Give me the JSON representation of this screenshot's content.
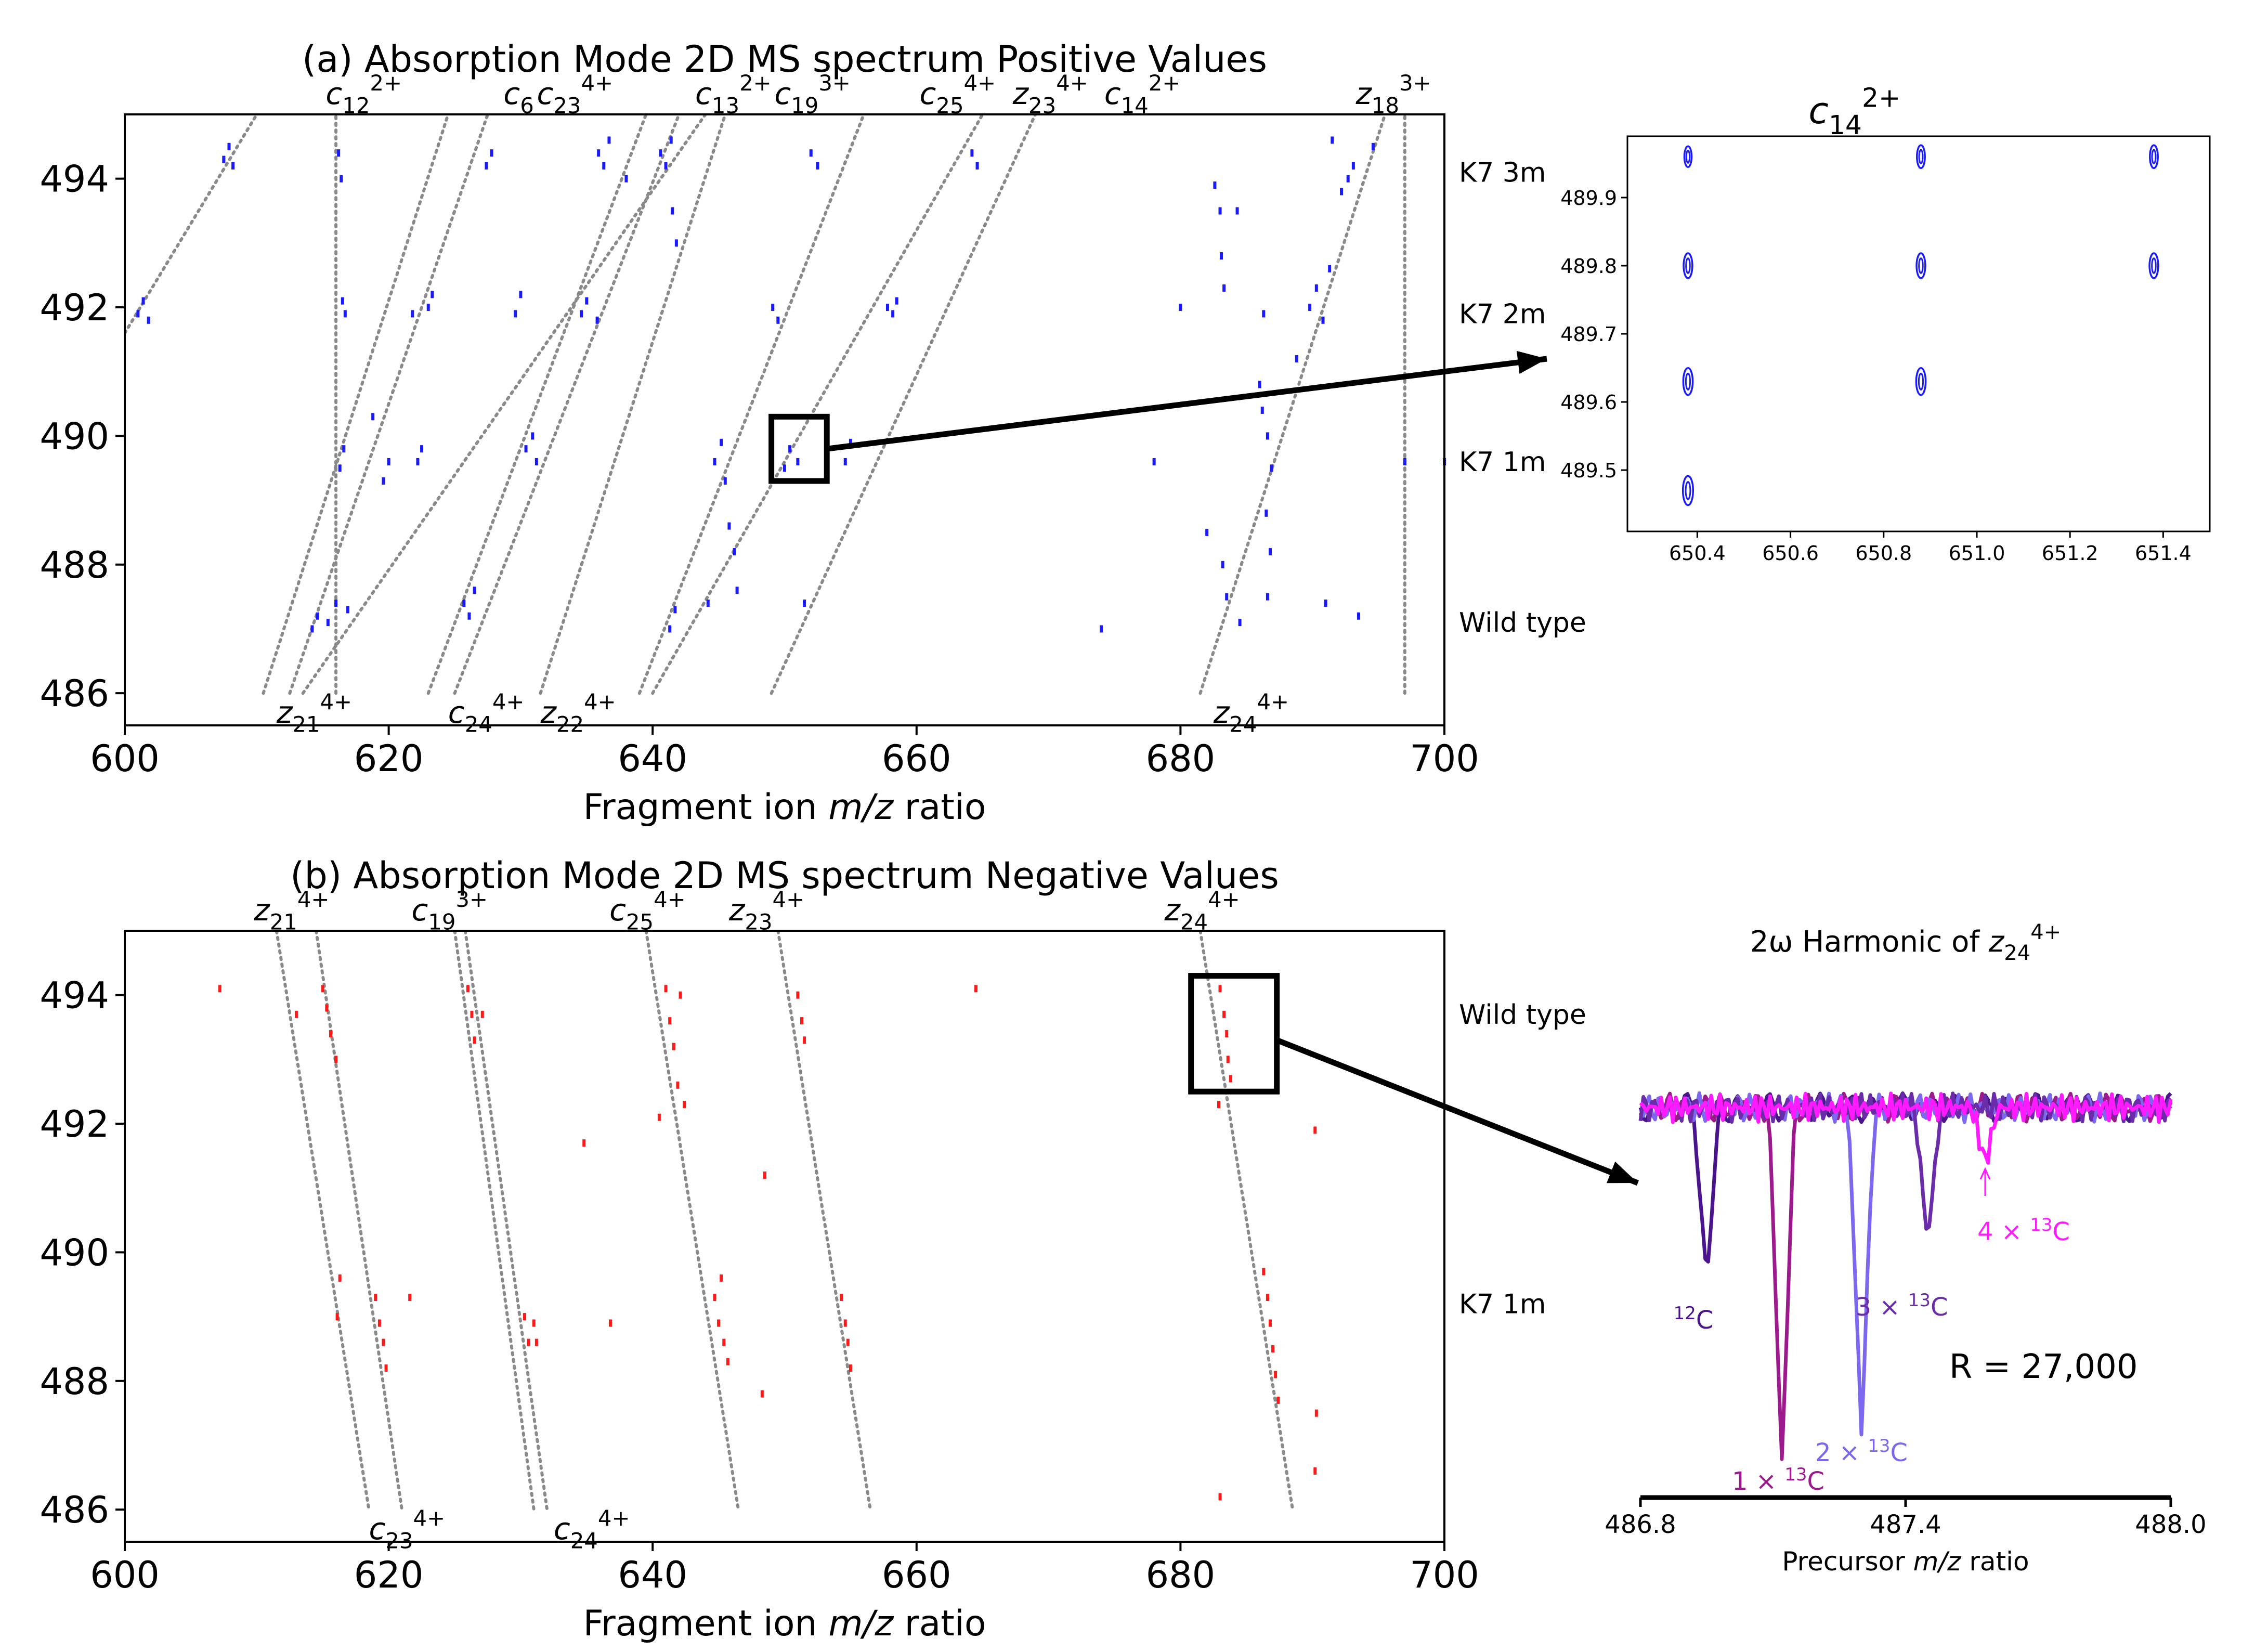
{
  "chart_data": [
    {
      "id": "panel_a",
      "type": "scatter",
      "title": "(a) Absorption Mode 2D MS spectrum Positive Values",
      "xlabel": "Fragment ion m/z ratio",
      "ylabel": "",
      "xlim": [
        600,
        700
      ],
      "ylim": [
        485.5,
        495.0
      ],
      "xticks": [
        600,
        620,
        640,
        660,
        680,
        700
      ],
      "yticks": [
        486,
        488,
        490,
        492,
        494
      ],
      "grid": false,
      "point_color": "#1a1aff",
      "row_labels": [
        {
          "label": "K7 3m",
          "y": 494.1
        },
        {
          "label": "K7 2m",
          "y": 491.9
        },
        {
          "label": "K7 1m",
          "y": 489.6
        },
        {
          "label": "Wild type",
          "y": 487.1
        }
      ],
      "top_labels": [
        {
          "base": "c",
          "sub": "12",
          "sup": "2+",
          "x": 621
        },
        {
          "base": "c",
          "sub": "6",
          "sup": "",
          "x": 631
        },
        {
          "base": "c",
          "sub": "23",
          "sup": "4+",
          "x": 637
        },
        {
          "base": "c",
          "sub": "13",
          "sup": "2+",
          "x": 649
        },
        {
          "base": "c",
          "sub": "19",
          "sup": "3+",
          "x": 655
        },
        {
          "base": "c",
          "sub": "25",
          "sup": "4+",
          "x": 666
        },
        {
          "base": "z",
          "sub": "23",
          "sup": "4+",
          "x": 673
        },
        {
          "base": "c",
          "sub": "14",
          "sup": "2+",
          "x": 680
        },
        {
          "base": "z",
          "sub": "18",
          "sup": "3+",
          "x": 699
        }
      ],
      "bottom_labels": [
        {
          "base": "z",
          "sub": "21",
          "sup": "4+",
          "x": 611.5
        },
        {
          "base": "c",
          "sub": "24",
          "sup": "4+",
          "x": 624.5
        },
        {
          "base": "z",
          "sub": "22",
          "sup": "4+",
          "x": 631.5
        },
        {
          "base": "z",
          "sub": "24",
          "sup": "4+",
          "x": 682.5
        }
      ],
      "diagonals": [
        {
          "x1": 600.0,
          "y1": 491.6,
          "x2": 610.0,
          "y2": 495.0
        },
        {
          "x1": 616.0,
          "y1": 486.0,
          "x2": 616.0,
          "y2": 495.0
        },
        {
          "x1": 610.5,
          "y1": 486.0,
          "x2": 624.5,
          "y2": 495.0
        },
        {
          "x1": 612.5,
          "y1": 486.0,
          "x2": 627.5,
          "y2": 495.0
        },
        {
          "x1": 613.5,
          "y1": 486.0,
          "x2": 644.0,
          "y2": 495.0
        },
        {
          "x1": 623.0,
          "y1": 486.0,
          "x2": 639.5,
          "y2": 495.0
        },
        {
          "x1": 625.0,
          "y1": 486.0,
          "x2": 642.0,
          "y2": 495.0
        },
        {
          "x1": 631.5,
          "y1": 486.0,
          "x2": 645.5,
          "y2": 495.0
        },
        {
          "x1": 639.0,
          "y1": 486.0,
          "x2": 656.0,
          "y2": 495.0
        },
        {
          "x1": 640.0,
          "y1": 486.0,
          "x2": 665.0,
          "y2": 495.0
        },
        {
          "x1": 649.0,
          "y1": 486.0,
          "x2": 669.0,
          "y2": 495.0
        },
        {
          "x1": 681.5,
          "y1": 486.0,
          "x2": 695.5,
          "y2": 495.0
        },
        {
          "x1": 697.0,
          "y1": 486.0,
          "x2": 697.0,
          "y2": 495.0
        }
      ],
      "points": [
        [
          601.0,
          491.9
        ],
        [
          601.4,
          492.1
        ],
        [
          601.8,
          491.8
        ],
        [
          607.5,
          494.3
        ],
        [
          607.9,
          494.5
        ],
        [
          608.2,
          494.2
        ],
        [
          616.2,
          494.4
        ],
        [
          616.4,
          494.0
        ],
        [
          616.5,
          492.1
        ],
        [
          616.7,
          491.9
        ],
        [
          616.3,
          489.5
        ],
        [
          616.6,
          489.8
        ],
        [
          616.0,
          487.4
        ],
        [
          615.4,
          487.1
        ],
        [
          614.6,
          487.2
        ],
        [
          614.2,
          487.0
        ],
        [
          616.9,
          487.3
        ],
        [
          621.8,
          491.9
        ],
        [
          619.6,
          489.3
        ],
        [
          620.0,
          489.6
        ],
        [
          618.8,
          490.3
        ],
        [
          622.2,
          489.6
        ],
        [
          622.5,
          489.8
        ],
        [
          623.0,
          492.0
        ],
        [
          623.3,
          492.2
        ],
        [
          625.7,
          487.4
        ],
        [
          626.1,
          487.2
        ],
        [
          626.5,
          487.6
        ],
        [
          627.4,
          494.2
        ],
        [
          627.8,
          494.4
        ],
        [
          629.6,
          491.9
        ],
        [
          630.0,
          492.2
        ],
        [
          630.4,
          489.8
        ],
        [
          630.9,
          490.0
        ],
        [
          631.2,
          489.6
        ],
        [
          634.6,
          491.9
        ],
        [
          635.0,
          492.1
        ],
        [
          635.8,
          491.8
        ],
        [
          635.9,
          494.4
        ],
        [
          636.3,
          494.2
        ],
        [
          636.7,
          494.6
        ],
        [
          638.0,
          494.0
        ],
        [
          640.6,
          494.4
        ],
        [
          641.0,
          494.2
        ],
        [
          641.4,
          494.6
        ],
        [
          641.5,
          493.5
        ],
        [
          641.8,
          493.0
        ],
        [
          644.2,
          487.4
        ],
        [
          641.3,
          487.0
        ],
        [
          641.7,
          487.3
        ],
        [
          644.7,
          489.6
        ],
        [
          645.2,
          489.9
        ],
        [
          645.5,
          489.3
        ],
        [
          645.8,
          488.6
        ],
        [
          646.2,
          488.2
        ],
        [
          646.4,
          487.6
        ],
        [
          649.1,
          492.0
        ],
        [
          649.5,
          491.8
        ],
        [
          650.0,
          489.5
        ],
        [
          650.4,
          489.8
        ],
        [
          651.0,
          489.6
        ],
        [
          651.5,
          487.4
        ],
        [
          652.0,
          494.4
        ],
        [
          652.5,
          494.2
        ],
        [
          654.6,
          489.6
        ],
        [
          655.0,
          489.9
        ],
        [
          657.8,
          492.0
        ],
        [
          658.2,
          491.9
        ],
        [
          658.5,
          492.1
        ],
        [
          664.2,
          494.4
        ],
        [
          664.6,
          494.2
        ],
        [
          674.0,
          487.0
        ],
        [
          678.0,
          489.6
        ],
        [
          680.0,
          492.0
        ],
        [
          682.6,
          493.9
        ],
        [
          683.0,
          493.5
        ],
        [
          683.1,
          492.8
        ],
        [
          683.3,
          492.3
        ],
        [
          683.2,
          488.0
        ],
        [
          683.5,
          487.5
        ],
        [
          684.3,
          493.5
        ],
        [
          686.0,
          490.8
        ],
        [
          686.2,
          490.4
        ],
        [
          686.3,
          491.9
        ],
        [
          686.6,
          490.0
        ],
        [
          686.9,
          489.5
        ],
        [
          686.5,
          488.8
        ],
        [
          686.8,
          488.2
        ],
        [
          688.8,
          491.2
        ],
        [
          689.8,
          492.0
        ],
        [
          690.3,
          492.3
        ],
        [
          690.8,
          491.8
        ],
        [
          691.3,
          492.6
        ],
        [
          691.5,
          494.6
        ],
        [
          692.2,
          493.8
        ],
        [
          692.7,
          494.0
        ],
        [
          693.1,
          494.2
        ],
        [
          694.6,
          494.5
        ],
        [
          697.0,
          489.6
        ],
        [
          700.0,
          489.6
        ],
        [
          682.0,
          488.5
        ],
        [
          691.0,
          487.4
        ],
        [
          693.5,
          487.2
        ],
        [
          686.6,
          487.5
        ],
        [
          684.5,
          487.1
        ]
      ]
    },
    {
      "id": "panel_b",
      "type": "scatter",
      "title": "(b) Absorption Mode 2D MS spectrum Negative Values",
      "xlabel": "Fragment ion m/z ratio",
      "ylabel": "",
      "xlim": [
        600,
        700
      ],
      "ylim": [
        485.5,
        495.0
      ],
      "xticks": [
        600,
        620,
        640,
        660,
        680,
        700
      ],
      "yticks": [
        486,
        488,
        490,
        492,
        494
      ],
      "grid": false,
      "point_color": "#ff1a1a",
      "row_labels": [
        {
          "label": "Wild type",
          "y": 493.7
        },
        {
          "label": "K7 1m",
          "y": 489.2
        }
      ],
      "top_labels": [
        {
          "base": "z",
          "sub": "21",
          "sup": "4+",
          "x": 615.5
        },
        {
          "base": "c",
          "sub": "19",
          "sup": "3+",
          "x": 627.5
        },
        {
          "base": "c",
          "sub": "25",
          "sup": "4+",
          "x": 642.5
        },
        {
          "base": "z",
          "sub": "23",
          "sup": "4+",
          "x": 651.5
        },
        {
          "base": "z",
          "sub": "24",
          "sup": "4+",
          "x": 684.5
        }
      ],
      "bottom_labels": [
        {
          "base": "c",
          "sub": "23",
          "sup": "4+",
          "x": 618.5
        },
        {
          "base": "c",
          "sub": "24",
          "sup": "4+",
          "x": 632.5
        }
      ],
      "diagonals": [
        {
          "x1": 611.5,
          "y1": 495.0,
          "x2": 618.5,
          "y2": 486.0
        },
        {
          "x1": 614.5,
          "y1": 495.0,
          "x2": 621.0,
          "y2": 486.0
        },
        {
          "x1": 625.0,
          "y1": 495.0,
          "x2": 631.0,
          "y2": 486.0
        },
        {
          "x1": 625.8,
          "y1": 495.0,
          "x2": 632.0,
          "y2": 486.0
        },
        {
          "x1": 639.5,
          "y1": 495.0,
          "x2": 646.5,
          "y2": 486.0
        },
        {
          "x1": 649.5,
          "y1": 495.0,
          "x2": 656.5,
          "y2": 486.0
        },
        {
          "x1": 681.5,
          "y1": 495.0,
          "x2": 688.5,
          "y2": 486.0
        }
      ],
      "points": [
        [
          607.2,
          494.1
        ],
        [
          613.0,
          493.7
        ],
        [
          615.0,
          494.1
        ],
        [
          615.3,
          493.8
        ],
        [
          615.6,
          493.4
        ],
        [
          616.0,
          493.0
        ],
        [
          616.3,
          489.6
        ],
        [
          616.1,
          489.0
        ],
        [
          619.0,
          489.3
        ],
        [
          619.3,
          488.9
        ],
        [
          619.6,
          488.6
        ],
        [
          619.8,
          488.2
        ],
        [
          621.6,
          489.3
        ],
        [
          626.0,
          494.1
        ],
        [
          626.3,
          493.7
        ],
        [
          626.5,
          493.3
        ],
        [
          627.1,
          493.7
        ],
        [
          630.3,
          489.0
        ],
        [
          630.6,
          488.6
        ],
        [
          631.0,
          488.9
        ],
        [
          631.2,
          488.6
        ],
        [
          634.8,
          491.7
        ],
        [
          636.8,
          488.9
        ],
        [
          640.5,
          492.1
        ],
        [
          641.0,
          494.1
        ],
        [
          641.3,
          493.6
        ],
        [
          641.6,
          493.2
        ],
        [
          641.9,
          492.6
        ],
        [
          642.1,
          494.0
        ],
        [
          642.4,
          492.3
        ],
        [
          644.7,
          489.3
        ],
        [
          645.0,
          488.9
        ],
        [
          645.2,
          489.6
        ],
        [
          645.4,
          488.6
        ],
        [
          645.7,
          488.3
        ],
        [
          648.5,
          491.2
        ],
        [
          648.3,
          487.8
        ],
        [
          651.0,
          494.0
        ],
        [
          651.3,
          493.6
        ],
        [
          651.5,
          493.3
        ],
        [
          654.3,
          489.3
        ],
        [
          654.6,
          488.9
        ],
        [
          654.8,
          488.6
        ],
        [
          655.0,
          488.2
        ],
        [
          664.5,
          494.1
        ],
        [
          683.0,
          494.1
        ],
        [
          683.3,
          493.7
        ],
        [
          683.5,
          493.4
        ],
        [
          683.6,
          493.0
        ],
        [
          683.8,
          492.7
        ],
        [
          682.9,
          492.3
        ],
        [
          686.3,
          489.7
        ],
        [
          686.6,
          489.3
        ],
        [
          686.8,
          488.9
        ],
        [
          687.0,
          488.5
        ],
        [
          687.2,
          488.1
        ],
        [
          687.4,
          487.7
        ],
        [
          690.2,
          491.9
        ],
        [
          690.3,
          487.5
        ],
        [
          690.2,
          486.6
        ],
        [
          683.0,
          486.2
        ]
      ],
      "highlight_box": {
        "x1": 680.8,
        "x2": 687.3,
        "y1": 492.5,
        "y2": 494.3
      }
    },
    {
      "id": "inset_c14",
      "type": "scatter",
      "title_base": "c",
      "title_sub": "14",
      "title_sup": "2+",
      "xlabel": "",
      "ylabel": "",
      "xlim": [
        650.25,
        651.5
      ],
      "ylim": [
        489.41,
        489.99
      ],
      "xticks": [
        650.4,
        650.6,
        650.8,
        651.0,
        651.2,
        651.4
      ],
      "yticks": [
        489.5,
        489.6,
        489.7,
        489.8,
        489.9
      ],
      "grid": false,
      "contours": [
        {
          "x": 650.38,
          "y": 489.96,
          "size": 1
        },
        {
          "x": 650.88,
          "y": 489.96,
          "size": 1.1
        },
        {
          "x": 651.38,
          "y": 489.96,
          "size": 1.1
        },
        {
          "x": 650.38,
          "y": 489.8,
          "size": 1.2
        },
        {
          "x": 650.88,
          "y": 489.8,
          "size": 1.2
        },
        {
          "x": 651.38,
          "y": 489.8,
          "size": 1.2
        },
        {
          "x": 650.38,
          "y": 489.63,
          "size": 1.3
        },
        {
          "x": 650.88,
          "y": 489.63,
          "size": 1.3
        },
        {
          "x": 650.38,
          "y": 489.47,
          "size": 1.4
        }
      ],
      "source_box": {
        "x1": 649.0,
        "x2": 653.2,
        "y1": 489.3,
        "y2": 490.3
      }
    },
    {
      "id": "inset_harmonic",
      "type": "line",
      "title_prefix": "2ω Harmonic of ",
      "title_base": "z",
      "title_sub": "24",
      "title_sup": "4+",
      "xlabel": "Precursor m/z ratio",
      "xlim": [
        486.8,
        488.0
      ],
      "xticks": [
        "486.8",
        "487.4",
        "488.0"
      ],
      "tick_values": [
        486.8,
        487.4,
        488.0
      ],
      "resolution_text": "R = 27,000",
      "series": [
        {
          "name": "12C",
          "color": "#4a148c",
          "dip_x": 486.95,
          "dip_depth": 1.0
        },
        {
          "name": "1 × 13C",
          "color": "#9c1a8c",
          "dip_x": 487.12,
          "dip_depth": 2.05
        },
        {
          "name": "2 × 13C",
          "color": "#7b68ee",
          "dip_x": 487.3,
          "dip_depth": 1.88
        },
        {
          "name": "3 × 13C",
          "color": "#6a2ca8",
          "dip_x": 487.45,
          "dip_depth": 0.78
        },
        {
          "name": "4 × 13C",
          "color": "#ff1aff",
          "dip_x": 487.58,
          "dip_depth": 0.32
        }
      ],
      "peak_labels": [
        {
          "iso": "12",
          "prefix": "",
          "color": "#4a148c",
          "x": 486.92
        },
        {
          "iso": "13",
          "prefix": "1 × ",
          "color": "#9c1a8c",
          "x": 487.1
        },
        {
          "iso": "13",
          "prefix": "2 × ",
          "color": "#7b68ee",
          "x": 487.3
        },
        {
          "iso": "13",
          "prefix": "3 × ",
          "color": "#6a2ca8",
          "x": 487.45
        },
        {
          "iso": "13",
          "prefix": "4 × ",
          "color": "#ff1aff",
          "x": 487.62
        }
      ]
    }
  ]
}
